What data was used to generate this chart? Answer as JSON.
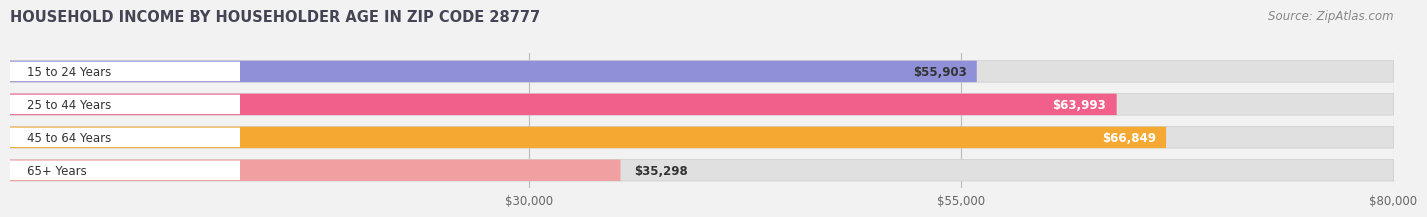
{
  "title": "HOUSEHOLD INCOME BY HOUSEHOLDER AGE IN ZIP CODE 28777",
  "source": "Source: ZipAtlas.com",
  "categories": [
    "15 to 24 Years",
    "25 to 44 Years",
    "45 to 64 Years",
    "65+ Years"
  ],
  "values": [
    55903,
    63993,
    66849,
    35298
  ],
  "bar_colors": [
    "#9090d8",
    "#f0608a",
    "#f5a832",
    "#f0a0a0"
  ],
  "value_labels": [
    "$55,903",
    "$63,993",
    "$66,849",
    "$35,298"
  ],
  "value_label_colors": [
    "#333333",
    "#ffffff",
    "#ffffff",
    "#333333"
  ],
  "bg_color": "#f2f2f2",
  "bar_bg_color": "#e0e0e0",
  "label_bg_color": "#ffffff",
  "xlim_data": [
    0,
    80000
  ],
  "xstart": 0,
  "xticks": [
    30000,
    55000,
    80000
  ],
  "xtick_labels": [
    "$30,000",
    "$55,000",
    "$80,000"
  ],
  "title_fontsize": 10.5,
  "source_fontsize": 8.5,
  "bar_height": 0.65,
  "figsize": [
    14.06,
    2.33
  ]
}
